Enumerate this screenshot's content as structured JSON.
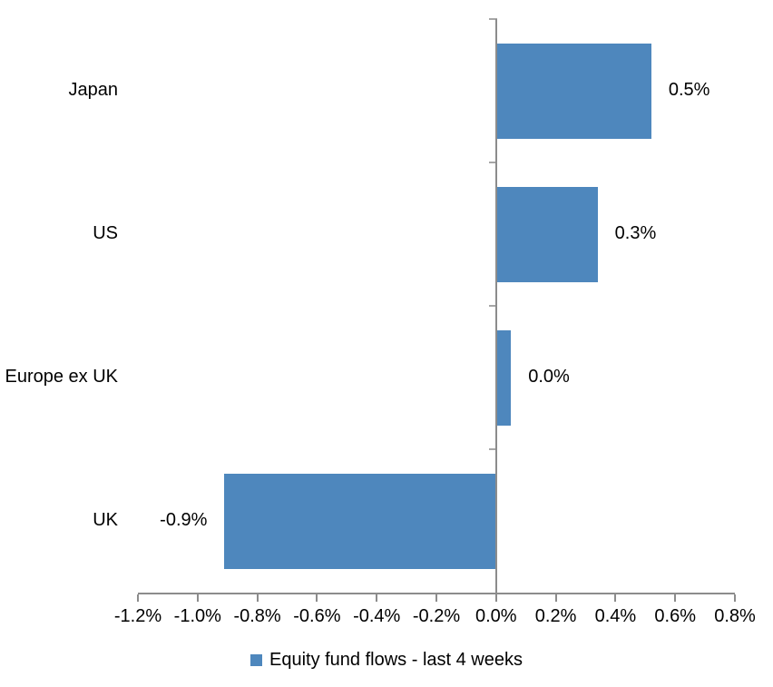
{
  "chart_data": {
    "type": "bar",
    "orientation": "horizontal",
    "title": "",
    "categories": [
      "Japan",
      "US",
      "Europe ex UK",
      "UK"
    ],
    "values": [
      0.5,
      0.3,
      0.0,
      -0.9
    ],
    "value_labels": [
      "0.5%",
      "0.3%",
      "0.0%",
      "-0.9%"
    ],
    "bar_render_values": [
      0.52,
      0.34,
      0.05,
      -0.91
    ],
    "unit": "%",
    "xlabel": "",
    "ylabel": "",
    "xlim": [
      -1.2,
      0.8
    ],
    "x_tick_step": 0.2,
    "x_tick_labels": [
      "-1.2%",
      "-1.0%",
      "-0.8%",
      "-0.6%",
      "-0.4%",
      "-0.2%",
      "0.0%",
      "0.2%",
      "0.4%",
      "0.6%",
      "0.8%"
    ],
    "grid": false,
    "legend": {
      "label": "Equity fund flows - last 4 weeks",
      "position": "bottom-center"
    },
    "colors": {
      "bar": "#4E87BD",
      "axis": "#8C8C8C",
      "tick": "#A6A6A6",
      "text": "#000000",
      "background": "#FFFFFF"
    }
  }
}
